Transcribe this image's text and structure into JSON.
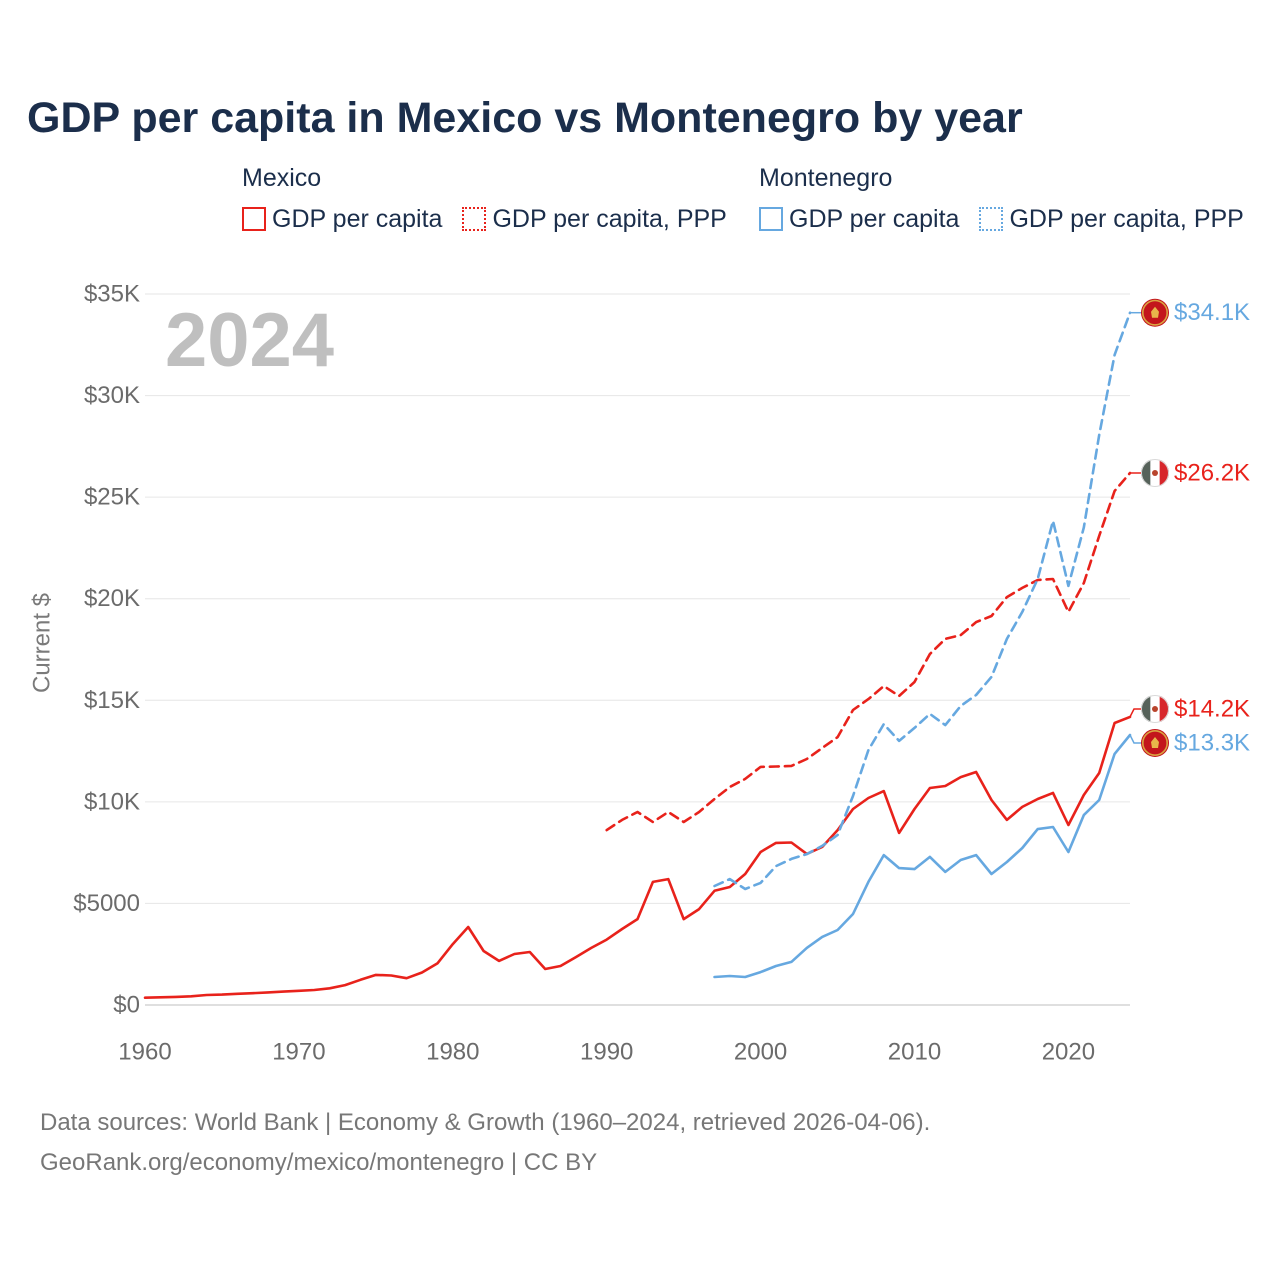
{
  "chart_data": {
    "type": "line",
    "title": "GDP per capita in Mexico vs Montenegro by year",
    "ylabel": "Current $",
    "year_label": "2024",
    "xlim": [
      1960,
      2024
    ],
    "ylim": [
      0,
      35000
    ],
    "grid": true,
    "x_ticks": [
      1960,
      1970,
      1980,
      1990,
      2000,
      2010,
      2020
    ],
    "x_tick_labels": [
      "1960",
      "1970",
      "1980",
      "1990",
      "2000",
      "2010",
      "2020"
    ],
    "y_ticks": [
      0,
      5000,
      10000,
      15000,
      20000,
      25000,
      30000,
      35000
    ],
    "y_tick_labels": [
      "$0",
      "$5000",
      "$10K",
      "$15K",
      "$20K",
      "$25K",
      "$30K",
      "$35K"
    ],
    "legend": [
      {
        "country": "Mexico",
        "color": "#e8221b",
        "items": [
          {
            "label": "GDP per capita",
            "dotted": false
          },
          {
            "label": "GDP per capita, PPP",
            "dotted": true
          }
        ]
      },
      {
        "country": "Montenegro",
        "color": "#66a8e0",
        "items": [
          {
            "label": "GDP per capita",
            "dotted": false
          },
          {
            "label": "GDP per capita, PPP",
            "dotted": true
          }
        ]
      }
    ],
    "series": [
      {
        "legend_group": 0,
        "legend_item": 0,
        "dashed": false,
        "color": "#e8221b",
        "flag_icon": "mexico-flag-icon",
        "end_label": "$14.2K",
        "start_year": 1960,
        "values": [
          360,
          380,
          400,
          430,
          490,
          510,
          550,
          580,
          620,
          660,
          700,
          740,
          820,
          980,
          1240,
          1480,
          1450,
          1320,
          1600,
          2050,
          3000,
          3840,
          2660,
          2170,
          2510,
          2610,
          1770,
          1920,
          2360,
          2810,
          3220,
          3740,
          4230,
          6060,
          6200,
          4230,
          4720,
          5620,
          5810,
          6450,
          7530,
          7980,
          8000,
          7440,
          7780,
          8610,
          9650,
          10190,
          10530,
          8470,
          9650,
          10680,
          10780,
          11220,
          11470,
          10090,
          9110,
          9750,
          10140,
          10440,
          8860,
          10340,
          11420,
          13880,
          14180
        ]
      },
      {
        "legend_group": 0,
        "legend_item": 1,
        "dashed": true,
        "color": "#e8221b",
        "flag_icon": "mexico-flag-icon",
        "end_label": "$26.2K",
        "start_year": 1990,
        "values": [
          8610,
          9110,
          9500,
          9010,
          9500,
          9010,
          9500,
          10140,
          10730,
          11130,
          11720,
          11740,
          11770,
          12110,
          12650,
          13190,
          14520,
          15060,
          15700,
          15210,
          15900,
          17280,
          18020,
          18210,
          18850,
          19150,
          20080,
          20530,
          20920,
          20970,
          19350,
          20770,
          23090,
          25300,
          26190
        ]
      },
      {
        "legend_group": 1,
        "legend_item": 0,
        "dashed": false,
        "color": "#66a8e0",
        "flag_icon": "montenegro-flag-icon",
        "end_label": "$13.3K",
        "start_year": 1997,
        "values": [
          1380,
          1430,
          1380,
          1620,
          1920,
          2120,
          2810,
          3350,
          3690,
          4480,
          6060,
          7380,
          6740,
          6690,
          7290,
          6550,
          7140,
          7380,
          6450,
          7040,
          7730,
          8660,
          8760,
          7530,
          9350,
          10090,
          12360,
          13290
        ]
      },
      {
        "legend_group": 1,
        "legend_item": 1,
        "dashed": true,
        "color": "#66a8e0",
        "flag_icon": "montenegro-flag-icon",
        "end_label": "$34.1K",
        "start_year": 1997,
        "values": [
          5860,
          6200,
          5710,
          6010,
          6840,
          7190,
          7430,
          7830,
          8370,
          10290,
          12550,
          13830,
          13000,
          13640,
          14330,
          13780,
          14720,
          15260,
          16150,
          18020,
          19350,
          20970,
          23830,
          20630,
          23500,
          28060,
          32000,
          34080
        ]
      }
    ]
  },
  "footer": {
    "source_line": "Data sources: World Bank | Economy & Growth (1960–2024, retrieved 2026-04-06).",
    "credit_line": "GeoRank.org/economy/mexico/montenegro | CC BY"
  }
}
